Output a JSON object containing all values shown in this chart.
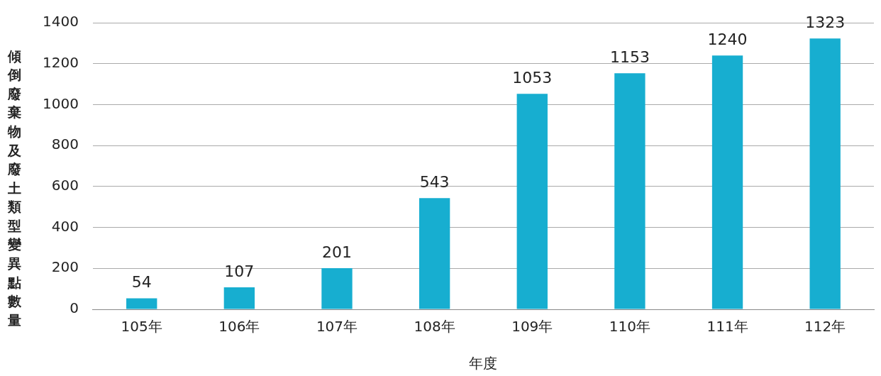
{
  "chart_data": {
    "type": "bar",
    "xlabel": "年度",
    "ylabel": "傾倒廢棄物及廢土類型變異點數量",
    "categories": [
      "105年",
      "106年",
      "107年",
      "108年",
      "109年",
      "110年",
      "111年",
      "112年"
    ],
    "values": [
      54,
      107,
      201,
      543,
      1053,
      1153,
      1240,
      1323
    ],
    "color": "#17aed0",
    "ylim": [
      0,
      1400
    ],
    "yticks": [
      0,
      200,
      400,
      600,
      800,
      1000,
      1200,
      1400
    ],
    "grid": "y",
    "data_labels": true,
    "legend": false
  }
}
